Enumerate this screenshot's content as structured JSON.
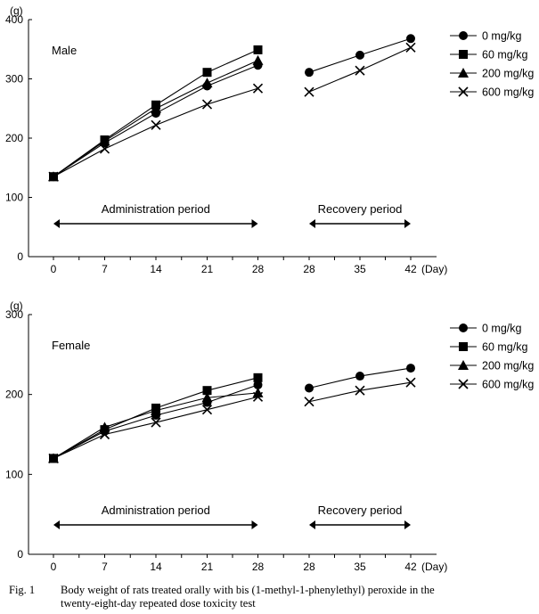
{
  "chart_data": [
    {
      "type": "line",
      "panel": "Male",
      "ylabel": "(g)",
      "xlabel": "(Day)",
      "ylim": [
        0,
        400
      ],
      "yticks": [
        0,
        100,
        200,
        300,
        400
      ],
      "x_tick_labels": [
        "0",
        "7",
        "14",
        "21",
        "28",
        "28",
        "35",
        "42"
      ],
      "periods": [
        {
          "label": "Administration period",
          "from_slot": 0,
          "to_slot": 4
        },
        {
          "label": "Recovery period",
          "from_slot": 5,
          "to_slot": 7
        }
      ],
      "series": [
        {
          "name": "0 mg/kg",
          "marker": "circle",
          "admin": [
            135,
            192,
            242,
            288,
            323
          ],
          "recovery": [
            311,
            340,
            368
          ]
        },
        {
          "name": "60 mg/kg",
          "marker": "square",
          "admin": [
            135,
            197,
            256,
            311,
            349
          ],
          "recovery": null
        },
        {
          "name": "200 mg/kg",
          "marker": "triangle",
          "admin": [
            135,
            195,
            250,
            293,
            331
          ],
          "recovery": null
        },
        {
          "name": "600 mg/kg",
          "marker": "x",
          "admin": [
            135,
            182,
            222,
            257,
            284
          ],
          "recovery": [
            278,
            314,
            353
          ]
        }
      ],
      "legend": "right"
    },
    {
      "type": "line",
      "panel": "Female",
      "ylabel": "(g)",
      "xlabel": "(Day)",
      "ylim": [
        0,
        300
      ],
      "yticks": [
        0,
        100,
        200,
        300
      ],
      "x_tick_labels": [
        "0",
        "7",
        "14",
        "21",
        "28",
        "28",
        "35",
        "42"
      ],
      "periods": [
        {
          "label": "Administration period",
          "from_slot": 0,
          "to_slot": 4
        },
        {
          "label": "Recovery period",
          "from_slot": 5,
          "to_slot": 7
        }
      ],
      "series": [
        {
          "name": "0 mg/kg",
          "marker": "circle",
          "admin": [
            120,
            154,
            174,
            190,
            212
          ],
          "recovery": [
            208,
            223,
            233
          ]
        },
        {
          "name": "60 mg/kg",
          "marker": "square",
          "admin": [
            120,
            156,
            183,
            205,
            221
          ],
          "recovery": null
        },
        {
          "name": "200 mg/kg",
          "marker": "triangle",
          "admin": [
            120,
            159,
            180,
            196,
            202
          ],
          "recovery": null
        },
        {
          "name": "600 mg/kg",
          "marker": "x",
          "admin": [
            120,
            150,
            165,
            181,
            197
          ],
          "recovery": [
            191,
            205,
            215
          ]
        }
      ],
      "legend": "right"
    }
  ],
  "caption": {
    "fig_label": "Fig. 1",
    "line1": "Body weight of rats treated orally with bis (1-methyl-1-phenylethyl) peroxide in the",
    "line2": "twenty-eight-day repeated dose toxicity test"
  }
}
